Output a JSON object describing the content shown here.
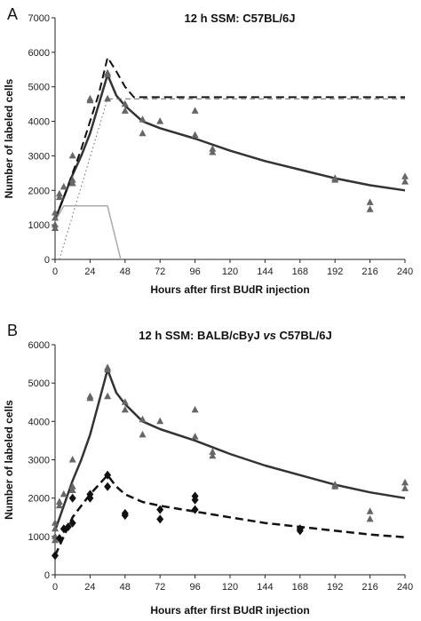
{
  "chart_data": [
    {
      "panel_label": "A",
      "type": "line",
      "title": "12 h SSM: C57BL/6J",
      "xlabel": "Hours after first BUdR injection",
      "ylabel": "Number of labeled cells",
      "xlim": [
        0,
        240
      ],
      "ylim": [
        0,
        7000
      ],
      "xticks": [
        0,
        24,
        48,
        72,
        96,
        120,
        144,
        168,
        192,
        216,
        240
      ],
      "yticks": [
        0,
        1000,
        2000,
        3000,
        4000,
        5000,
        6000,
        7000
      ],
      "grid": false,
      "series": [
        {
          "kind": "scatter",
          "marker": "triangle",
          "color": "#666666",
          "points": [
            [
              0,
              1350
            ],
            [
              0,
              1200
            ],
            [
              0,
              1000
            ],
            [
              0,
              900
            ],
            [
              3,
              1900
            ],
            [
              3,
              1800
            ],
            [
              6,
              2100
            ],
            [
              12,
              2300
            ],
            [
              12,
              2200
            ],
            [
              12,
              3000
            ],
            [
              24,
              4600
            ],
            [
              24,
              4650
            ],
            [
              36,
              5400
            ],
            [
              36,
              5350
            ],
            [
              36,
              4650
            ],
            [
              48,
              4500
            ],
            [
              48,
              4300
            ],
            [
              60,
              4050
            ],
            [
              60,
              3650
            ],
            [
              72,
              4000
            ],
            [
              96,
              4300
            ],
            [
              96,
              3600
            ],
            [
              108,
              3200
            ],
            [
              108,
              3100
            ],
            [
              192,
              2350
            ],
            [
              192,
              2300
            ],
            [
              216,
              1650
            ],
            [
              216,
              1450
            ],
            [
              240,
              2400
            ],
            [
              240,
              2250
            ]
          ]
        },
        {
          "kind": "line",
          "style": "solid",
          "color": "#333333",
          "width": 2.5,
          "points": [
            [
              0,
              1150
            ],
            [
              6,
              1800
            ],
            [
              12,
              2450
            ],
            [
              18,
              3000
            ],
            [
              24,
              3650
            ],
            [
              30,
              4500
            ],
            [
              36,
              5350
            ],
            [
              42,
              4750
            ],
            [
              48,
              4450
            ],
            [
              60,
              4000
            ],
            [
              72,
              3800
            ],
            [
              96,
              3500
            ],
            [
              120,
              3150
            ],
            [
              144,
              2850
            ],
            [
              168,
              2600
            ],
            [
              192,
              2350
            ],
            [
              216,
              2150
            ],
            [
              240,
              2000
            ]
          ]
        },
        {
          "kind": "line",
          "style": "dashed",
          "color": "#111111",
          "width": 2,
          "points": [
            [
              0,
              1150
            ],
            [
              6,
              1800
            ],
            [
              12,
              2500
            ],
            [
              18,
              3200
            ],
            [
              24,
              4000
            ],
            [
              30,
              4800
            ],
            [
              36,
              5850
            ],
            [
              42,
              5450
            ],
            [
              48,
              5000
            ],
            [
              54,
              4700
            ],
            [
              240,
              4700
            ]
          ]
        },
        {
          "kind": "line",
          "style": "dashed",
          "color": "#666666",
          "width": 1,
          "points": [
            [
              36,
              4650
            ],
            [
              240,
              4650
            ]
          ]
        },
        {
          "kind": "line",
          "style": "dotted",
          "color": "#666666",
          "width": 1,
          "points": [
            [
              3,
              0
            ],
            [
              36,
              4650
            ]
          ]
        },
        {
          "kind": "line",
          "style": "solid",
          "color": "#aaaaaa",
          "width": 1.5,
          "points": [
            [
              0,
              1100
            ],
            [
              6,
              1550
            ],
            [
              36,
              1550
            ],
            [
              45,
              0
            ]
          ]
        }
      ]
    },
    {
      "panel_label": "B",
      "type": "line",
      "title_parts": [
        "12 h SSM: BALB/cByJ ",
        "vs",
        " C57BL/6J"
      ],
      "xlabel": "Hours after first BUdR injection",
      "ylabel": "Number of labeled cells",
      "xlim": [
        0,
        240
      ],
      "ylim": [
        0,
        6000
      ],
      "xticks": [
        0,
        24,
        48,
        72,
        96,
        120,
        144,
        168,
        192,
        216,
        240
      ],
      "yticks": [
        0,
        1000,
        2000,
        3000,
        4000,
        5000,
        6000
      ],
      "grid": false,
      "series": [
        {
          "kind": "scatter",
          "marker": "triangle",
          "color": "#666666",
          "points": [
            [
              0,
              1350
            ],
            [
              0,
              1200
            ],
            [
              0,
              1000
            ],
            [
              0,
              900
            ],
            [
              3,
              1900
            ],
            [
              3,
              1800
            ],
            [
              6,
              2100
            ],
            [
              12,
              2300
            ],
            [
              12,
              2200
            ],
            [
              12,
              3000
            ],
            [
              24,
              4600
            ],
            [
              24,
              4650
            ],
            [
              36,
              5400
            ],
            [
              36,
              5350
            ],
            [
              36,
              4650
            ],
            [
              48,
              4500
            ],
            [
              48,
              4300
            ],
            [
              60,
              4050
            ],
            [
              60,
              3650
            ],
            [
              72,
              4000
            ],
            [
              96,
              4300
            ],
            [
              96,
              3600
            ],
            [
              108,
              3200
            ],
            [
              108,
              3100
            ],
            [
              192,
              2350
            ],
            [
              192,
              2300
            ],
            [
              216,
              1650
            ],
            [
              216,
              1450
            ],
            [
              240,
              2400
            ],
            [
              240,
              2250
            ]
          ]
        },
        {
          "kind": "scatter",
          "marker": "diamond",
          "color": "#111111",
          "points": [
            [
              0,
              500
            ],
            [
              3,
              950
            ],
            [
              6,
              1200
            ],
            [
              9,
              1250
            ],
            [
              12,
              2000
            ],
            [
              12,
              1350
            ],
            [
              24,
              2100
            ],
            [
              24,
              2000
            ],
            [
              36,
              2600
            ],
            [
              36,
              2300
            ],
            [
              48,
              1600
            ],
            [
              48,
              1550
            ],
            [
              72,
              1700
            ],
            [
              72,
              1450
            ],
            [
              96,
              2050
            ],
            [
              96,
              1950
            ],
            [
              96,
              1700
            ],
            [
              168,
              1200
            ],
            [
              168,
              1150
            ]
          ]
        },
        {
          "kind": "line",
          "style": "solid",
          "color": "#333333",
          "width": 2.5,
          "points": [
            [
              0,
              1150
            ],
            [
              6,
              1800
            ],
            [
              12,
              2450
            ],
            [
              18,
              3000
            ],
            [
              24,
              3650
            ],
            [
              30,
              4500
            ],
            [
              36,
              5350
            ],
            [
              42,
              4750
            ],
            [
              48,
              4450
            ],
            [
              60,
              4000
            ],
            [
              72,
              3800
            ],
            [
              96,
              3500
            ],
            [
              120,
              3150
            ],
            [
              144,
              2850
            ],
            [
              168,
              2600
            ],
            [
              192,
              2350
            ],
            [
              216,
              2150
            ],
            [
              240,
              2000
            ]
          ]
        },
        {
          "kind": "line",
          "style": "dashed",
          "color": "#111111",
          "width": 2.5,
          "points": [
            [
              0,
              500
            ],
            [
              6,
              1000
            ],
            [
              12,
              1500
            ],
            [
              18,
              1800
            ],
            [
              24,
              2100
            ],
            [
              30,
              2350
            ],
            [
              36,
              2600
            ],
            [
              42,
              2300
            ],
            [
              48,
              2100
            ],
            [
              60,
              1900
            ],
            [
              72,
              1800
            ],
            [
              96,
              1650
            ],
            [
              120,
              1500
            ],
            [
              144,
              1350
            ],
            [
              168,
              1250
            ],
            [
              192,
              1150
            ],
            [
              216,
              1050
            ],
            [
              240,
              980
            ]
          ]
        }
      ]
    }
  ]
}
